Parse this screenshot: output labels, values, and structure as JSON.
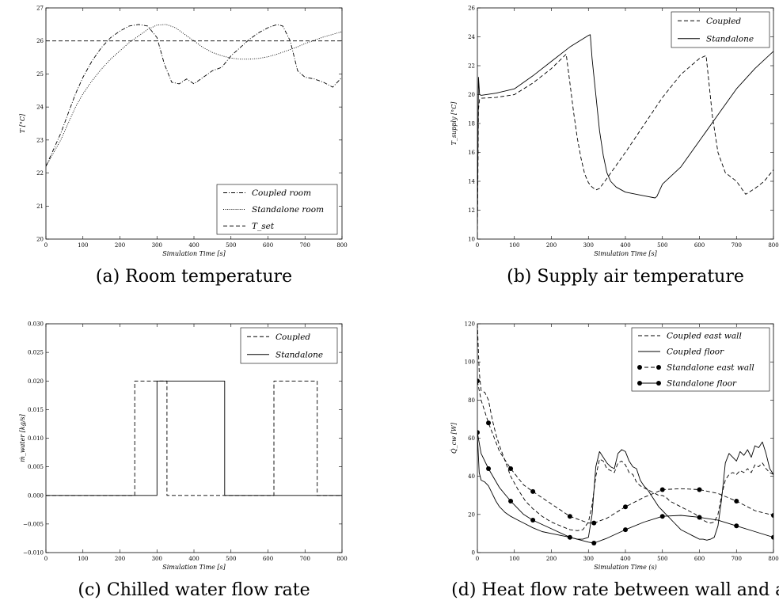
{
  "chart_data": [
    {
      "type": "line",
      "caption": "(a) Room temperature",
      "xlabel": "Simulation Time [s]",
      "ylabel": "T [°C]",
      "xlim": [
        0,
        800
      ],
      "ylim": [
        20,
        27
      ],
      "xticks": [
        "0",
        "100",
        "200",
        "300",
        "400",
        "500",
        "600",
        "700",
        "800"
      ],
      "yticks": [
        "20",
        "21",
        "22",
        "23",
        "24",
        "25",
        "26",
        "27"
      ],
      "legend": "bottom-right",
      "grid": false,
      "series": [
        {
          "name": "Coupled room",
          "style": "dashdot",
          "x": [
            0,
            20,
            40,
            60,
            80,
            100,
            125,
            150,
            175,
            200,
            225,
            250,
            275,
            300,
            320,
            340,
            360,
            380,
            400,
            425,
            450,
            475,
            500,
            525,
            550,
            575,
            600,
            625,
            640,
            660,
            680,
            700,
            725,
            750,
            775,
            800
          ],
          "y": [
            22.2,
            22.7,
            23.2,
            23.8,
            24.4,
            24.9,
            25.4,
            25.8,
            26.1,
            26.3,
            26.45,
            26.5,
            26.45,
            26.1,
            25.3,
            24.75,
            24.7,
            24.85,
            24.7,
            24.9,
            25.1,
            25.2,
            25.55,
            25.8,
            26.05,
            26.25,
            26.4,
            26.5,
            26.45,
            26.0,
            25.1,
            24.9,
            24.85,
            24.75,
            24.6,
            24.9
          ]
        },
        {
          "name": "Standalone room",
          "style": "dotted",
          "x": [
            0,
            20,
            40,
            60,
            80,
            100,
            125,
            150,
            175,
            200,
            225,
            250,
            275,
            300,
            325,
            350,
            375,
            400,
            425,
            450,
            475,
            500,
            525,
            550,
            575,
            600,
            625,
            650,
            675,
            700,
            725,
            750,
            775,
            800
          ],
          "y": [
            22.2,
            22.6,
            23.0,
            23.5,
            24.0,
            24.4,
            24.8,
            25.15,
            25.45,
            25.7,
            25.95,
            26.15,
            26.35,
            26.48,
            26.5,
            26.4,
            26.2,
            26.0,
            25.8,
            25.65,
            25.55,
            25.48,
            25.45,
            25.45,
            25.47,
            25.52,
            25.6,
            25.7,
            25.8,
            25.92,
            26.02,
            26.12,
            26.2,
            26.28
          ]
        },
        {
          "name": "T_set",
          "style": "dashed",
          "x": [
            0,
            800
          ],
          "y": [
            26,
            26
          ]
        }
      ]
    },
    {
      "type": "line",
      "caption": "(b) Supply air temperature",
      "xlabel": "Simulation Time [s]",
      "ylabel": "T_supply [°C]",
      "xlim": [
        0,
        800
      ],
      "ylim": [
        10,
        26
      ],
      "xticks": [
        "0",
        "100",
        "200",
        "300",
        "400",
        "500",
        "600",
        "700",
        "800"
      ],
      "yticks": [
        "10",
        "12",
        "14",
        "16",
        "18",
        "20",
        "22",
        "24",
        "26"
      ],
      "legend": "top-right",
      "grid": false,
      "series": [
        {
          "name": "Coupled",
          "style": "dashed",
          "x": [
            0,
            3,
            6,
            10,
            50,
            100,
            150,
            200,
            240,
            250,
            260,
            270,
            280,
            290,
            300,
            310,
            320,
            330,
            350,
            400,
            450,
            500,
            550,
            600,
            618,
            625,
            635,
            650,
            670,
            700,
            725,
            750,
            775,
            800
          ],
          "y": [
            10.2,
            19,
            19.7,
            19.75,
            19.8,
            20.0,
            20.8,
            21.8,
            22.8,
            20.8,
            18.8,
            17.0,
            15.6,
            14.5,
            13.9,
            13.6,
            13.4,
            13.5,
            14.2,
            16.0,
            17.9,
            19.8,
            21.4,
            22.5,
            22.7,
            21.0,
            18.5,
            16.0,
            14.6,
            14.0,
            13.1,
            13.5,
            14.0,
            14.8
          ]
        },
        {
          "name": "Standalone",
          "style": "solid",
          "x": [
            0,
            3,
            6,
            10,
            50,
            100,
            150,
            200,
            250,
            300,
            305,
            310,
            320,
            330,
            340,
            350,
            360,
            375,
            400,
            450,
            480,
            485,
            500,
            550,
            600,
            650,
            700,
            750,
            800
          ],
          "y": [
            11,
            21.2,
            20.0,
            19.95,
            20.1,
            20.4,
            21.3,
            22.3,
            23.3,
            24.1,
            24.15,
            22.5,
            20.0,
            17.5,
            15.8,
            14.6,
            14.0,
            13.6,
            13.25,
            13.0,
            12.85,
            12.95,
            13.8,
            15.0,
            16.8,
            18.6,
            20.4,
            21.8,
            23.0
          ]
        }
      ]
    },
    {
      "type": "line",
      "caption": "(c) Chilled water flow rate",
      "xlabel": "Simulation Time [s]",
      "ylabel": "ṁ_water [kg/s]",
      "xlim": [
        0,
        800
      ],
      "ylim": [
        -0.01,
        0.03
      ],
      "xticks": [
        "0",
        "100",
        "200",
        "300",
        "400",
        "500",
        "600",
        "700",
        "800"
      ],
      "yticks": [
        "−0.010",
        "−0.005",
        "0.000",
        "0.005",
        "0.010",
        "0.015",
        "0.020",
        "0.025",
        "0.030"
      ],
      "legend": "top-right",
      "grid": false,
      "series": [
        {
          "name": "Coupled",
          "style": "dashed",
          "x": [
            0,
            240,
            240,
            327,
            327,
            616,
            616,
            733,
            733,
            800
          ],
          "y": [
            0,
            0,
            0.02,
            0.02,
            0,
            0,
            0.02,
            0.02,
            0,
            0
          ]
        },
        {
          "name": "Standalone",
          "style": "solid",
          "x": [
            0,
            300,
            300,
            483,
            483,
            800
          ],
          "y": [
            0,
            0,
            0.02,
            0.02,
            0,
            0
          ]
        }
      ]
    },
    {
      "type": "line",
      "caption": "(d) Heat flow rate between wall and air",
      "xlabel": "Simulation Time (s)",
      "ylabel": "Q̇_cw [W]",
      "xlim": [
        0,
        800
      ],
      "ylim": [
        0,
        120
      ],
      "xticks": [
        "0",
        "100",
        "200",
        "300",
        "400",
        "500",
        "600",
        "700",
        "800"
      ],
      "yticks": [
        "0",
        "20",
        "40",
        "60",
        "80",
        "100",
        "120"
      ],
      "legend": "top-right",
      "grid": false,
      "series": [
        {
          "name": "Coupled east wall",
          "style": "dashed",
          "x": [
            0,
            5,
            10,
            20,
            30,
            40,
            50,
            60,
            75,
            90,
            110,
            130,
            150,
            175,
            200,
            225,
            250,
            270,
            285,
            300,
            310,
            320,
            330,
            340,
            350,
            360,
            370,
            380,
            390,
            400,
            410,
            420,
            430,
            440,
            450,
            460,
            470,
            480,
            490,
            500,
            510,
            520,
            530,
            540,
            550,
            560,
            570,
            580,
            590,
            600,
            610,
            620,
            630,
            640,
            650,
            660,
            670,
            680,
            690,
            700,
            710,
            720,
            730,
            740,
            750,
            760,
            770,
            780,
            790,
            800
          ],
          "y": [
            120,
            95,
            85,
            84,
            80,
            70,
            62,
            56,
            48,
            40,
            33,
            27,
            23,
            19,
            16,
            14,
            12,
            11.5,
            12,
            16,
            25,
            40,
            49,
            48,
            44,
            43,
            42,
            47,
            48,
            46,
            42,
            41,
            37,
            35,
            34,
            33,
            32,
            31,
            30,
            30,
            29,
            27,
            26,
            25,
            24,
            23,
            22,
            21,
            20,
            18,
            17,
            16,
            15.5,
            16,
            20,
            30,
            38,
            41,
            42,
            41,
            43,
            42,
            44,
            42,
            46,
            45,
            47,
            44,
            42,
            41
          ]
        },
        {
          "name": "Coupled floor",
          "style": "solid",
          "x": [
            0,
            5,
            10,
            20,
            30,
            40,
            50,
            60,
            75,
            90,
            110,
            130,
            150,
            175,
            200,
            225,
            250,
            270,
            285,
            300,
            310,
            320,
            330,
            340,
            350,
            360,
            370,
            380,
            390,
            400,
            410,
            420,
            430,
            440,
            450,
            460,
            470,
            480,
            490,
            500,
            510,
            520,
            530,
            540,
            550,
            560,
            570,
            580,
            590,
            600,
            610,
            620,
            630,
            640,
            650,
            660,
            670,
            680,
            690,
            700,
            710,
            720,
            730,
            740,
            750,
            760,
            770,
            780,
            790,
            800
          ],
          "y": [
            62,
            42,
            38,
            37,
            35,
            31,
            27,
            24,
            21,
            19,
            17,
            15,
            13,
            11,
            10,
            9,
            8,
            7,
            7,
            8,
            20,
            45,
            53,
            50,
            47,
            45,
            44,
            52,
            54,
            53,
            48,
            45,
            44,
            38,
            35,
            33,
            30,
            27,
            24,
            22,
            20,
            18,
            16,
            14,
            12,
            11,
            10,
            9,
            8,
            7,
            7,
            6.5,
            7,
            8,
            14,
            28,
            47,
            52,
            50,
            48,
            53,
            51,
            54,
            50,
            56,
            55,
            58,
            52,
            44,
            41
          ]
        },
        {
          "name": "Standalone east wall",
          "style": "dashed-marker",
          "x": [
            0,
            10,
            30,
            60,
            90,
            125,
            150,
            200,
            250,
            300,
            315,
            350,
            400,
            450,
            500,
            550,
            600,
            650,
            700,
            750,
            800
          ],
          "y": [
            90,
            80,
            68,
            53,
            44,
            35.5,
            32,
            25.5,
            19,
            15.5,
            15.5,
            18,
            24,
            29,
            33,
            33.5,
            33,
            31,
            27,
            22,
            19.5
          ]
        },
        {
          "name": "Standalone floor",
          "style": "solid-marker",
          "x": [
            0,
            10,
            30,
            60,
            90,
            125,
            150,
            200,
            250,
            300,
            315,
            350,
            400,
            450,
            500,
            550,
            600,
            650,
            700,
            750,
            800
          ],
          "y": [
            63,
            52,
            44,
            34,
            27,
            20,
            17,
            12.5,
            8,
            5.5,
            5,
            7.5,
            12,
            16,
            19,
            19.5,
            18.5,
            17,
            14,
            11,
            8
          ]
        }
      ]
    }
  ]
}
